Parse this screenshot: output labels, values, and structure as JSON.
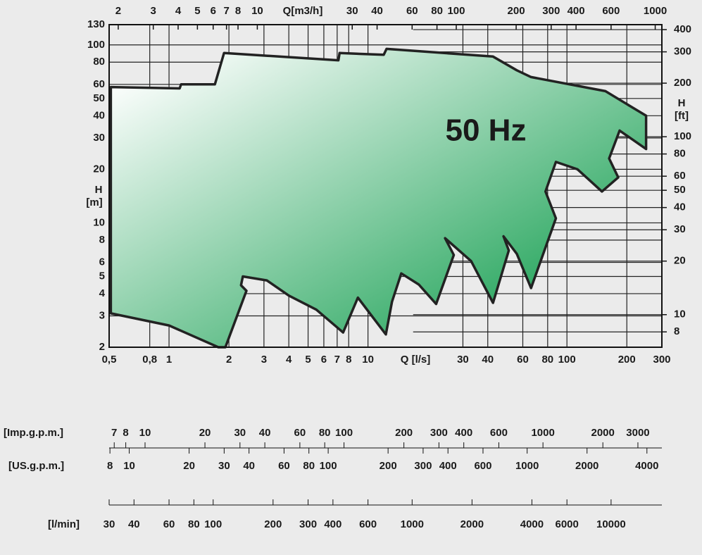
{
  "chart_data": {
    "type": "area",
    "annotation": "50 Hz",
    "xscale": "log",
    "yscale": "log",
    "grid": true,
    "xlabel": "Q [l/s]",
    "ylabel": [
      "H",
      "[m]"
    ],
    "x2label": "Q[m3/h]",
    "y2label": [
      "H",
      "[ft]"
    ],
    "xlim": [
      0.5,
      300
    ],
    "ylim": [
      2,
      130
    ],
    "xticks": [
      {
        "value": 0.5,
        "label": "0,5"
      },
      {
        "value": 0.8,
        "label": "0,8"
      },
      1,
      2,
      3,
      4,
      5,
      6,
      7,
      8,
      10,
      30,
      40,
      60,
      80,
      100,
      200,
      300
    ],
    "yticks": [
      2,
      3,
      4,
      5,
      6,
      8,
      10,
      20,
      30,
      40,
      50,
      60,
      80,
      100,
      130
    ],
    "x2lim": [
      1.8,
      1080
    ],
    "x2ticks": [
      2,
      3,
      4,
      5,
      6,
      7,
      8,
      10,
      30,
      40,
      60,
      80,
      100,
      200,
      300,
      400,
      600,
      1000
    ],
    "y2lim": [
      6.56,
      426.5
    ],
    "y2ticks": [
      8,
      10,
      20,
      30,
      40,
      50,
      60,
      80,
      100,
      200,
      300,
      400
    ],
    "series": [
      {
        "color_start": "#ffffff",
        "color": "#0a9a48",
        "x": [
          0.51,
          1.13,
          1.15,
          1.7,
          1.89,
          7.1,
          7.2,
          12,
          12.4,
          42.5,
          56,
          66,
          156,
          250,
          250,
          184,
          163,
          181,
          150,
          113,
          88,
          78,
          88,
          66,
          56,
          48,
          51,
          42.5,
          33,
          24.4,
          27,
          22,
          18,
          14.7,
          13.2,
          12.3,
          8.9,
          7.5,
          5.5,
          4.0,
          3.1,
          2.35,
          2.3,
          2.45,
          1.92,
          1.77,
          1.0,
          0.51
        ],
        "values": [
          58,
          57,
          60,
          60,
          90,
          82,
          90,
          88,
          95,
          86,
          72,
          66,
          55,
          40,
          26,
          33,
          23,
          18,
          15,
          20,
          22,
          15,
          10.6,
          4.3,
          6.7,
          8.4,
          7.0,
          3.55,
          6.1,
          8.2,
          6.6,
          3.5,
          4.5,
          5.2,
          3.6,
          2.36,
          3.8,
          2.42,
          3.25,
          3.9,
          4.75,
          5.0,
          4.46,
          4.15,
          2,
          2,
          2.65,
          3.1
        ]
      }
    ],
    "scales": [
      {
        "label": "[Imp.g.p.m.]",
        "lim": [
          6.6,
          3959
        ],
        "ticks": [
          7,
          8,
          10,
          20,
          30,
          40,
          60,
          80,
          100,
          200,
          300,
          400,
          600,
          1000,
          2000,
          3000
        ]
      },
      {
        "label": "[US.g.p.m.]",
        "lim": [
          7.925,
          4755
        ],
        "ticks": [
          8,
          10,
          20,
          30,
          40,
          60,
          80,
          100,
          200,
          300,
          400,
          600,
          1000,
          2000,
          4000
        ]
      },
      {
        "label": "[l/min]",
        "lim": [
          30,
          18000
        ],
        "ticks": [
          30,
          40,
          60,
          80,
          100,
          200,
          300,
          400,
          600,
          1000,
          2000,
          4000,
          6000,
          10000
        ]
      }
    ]
  }
}
